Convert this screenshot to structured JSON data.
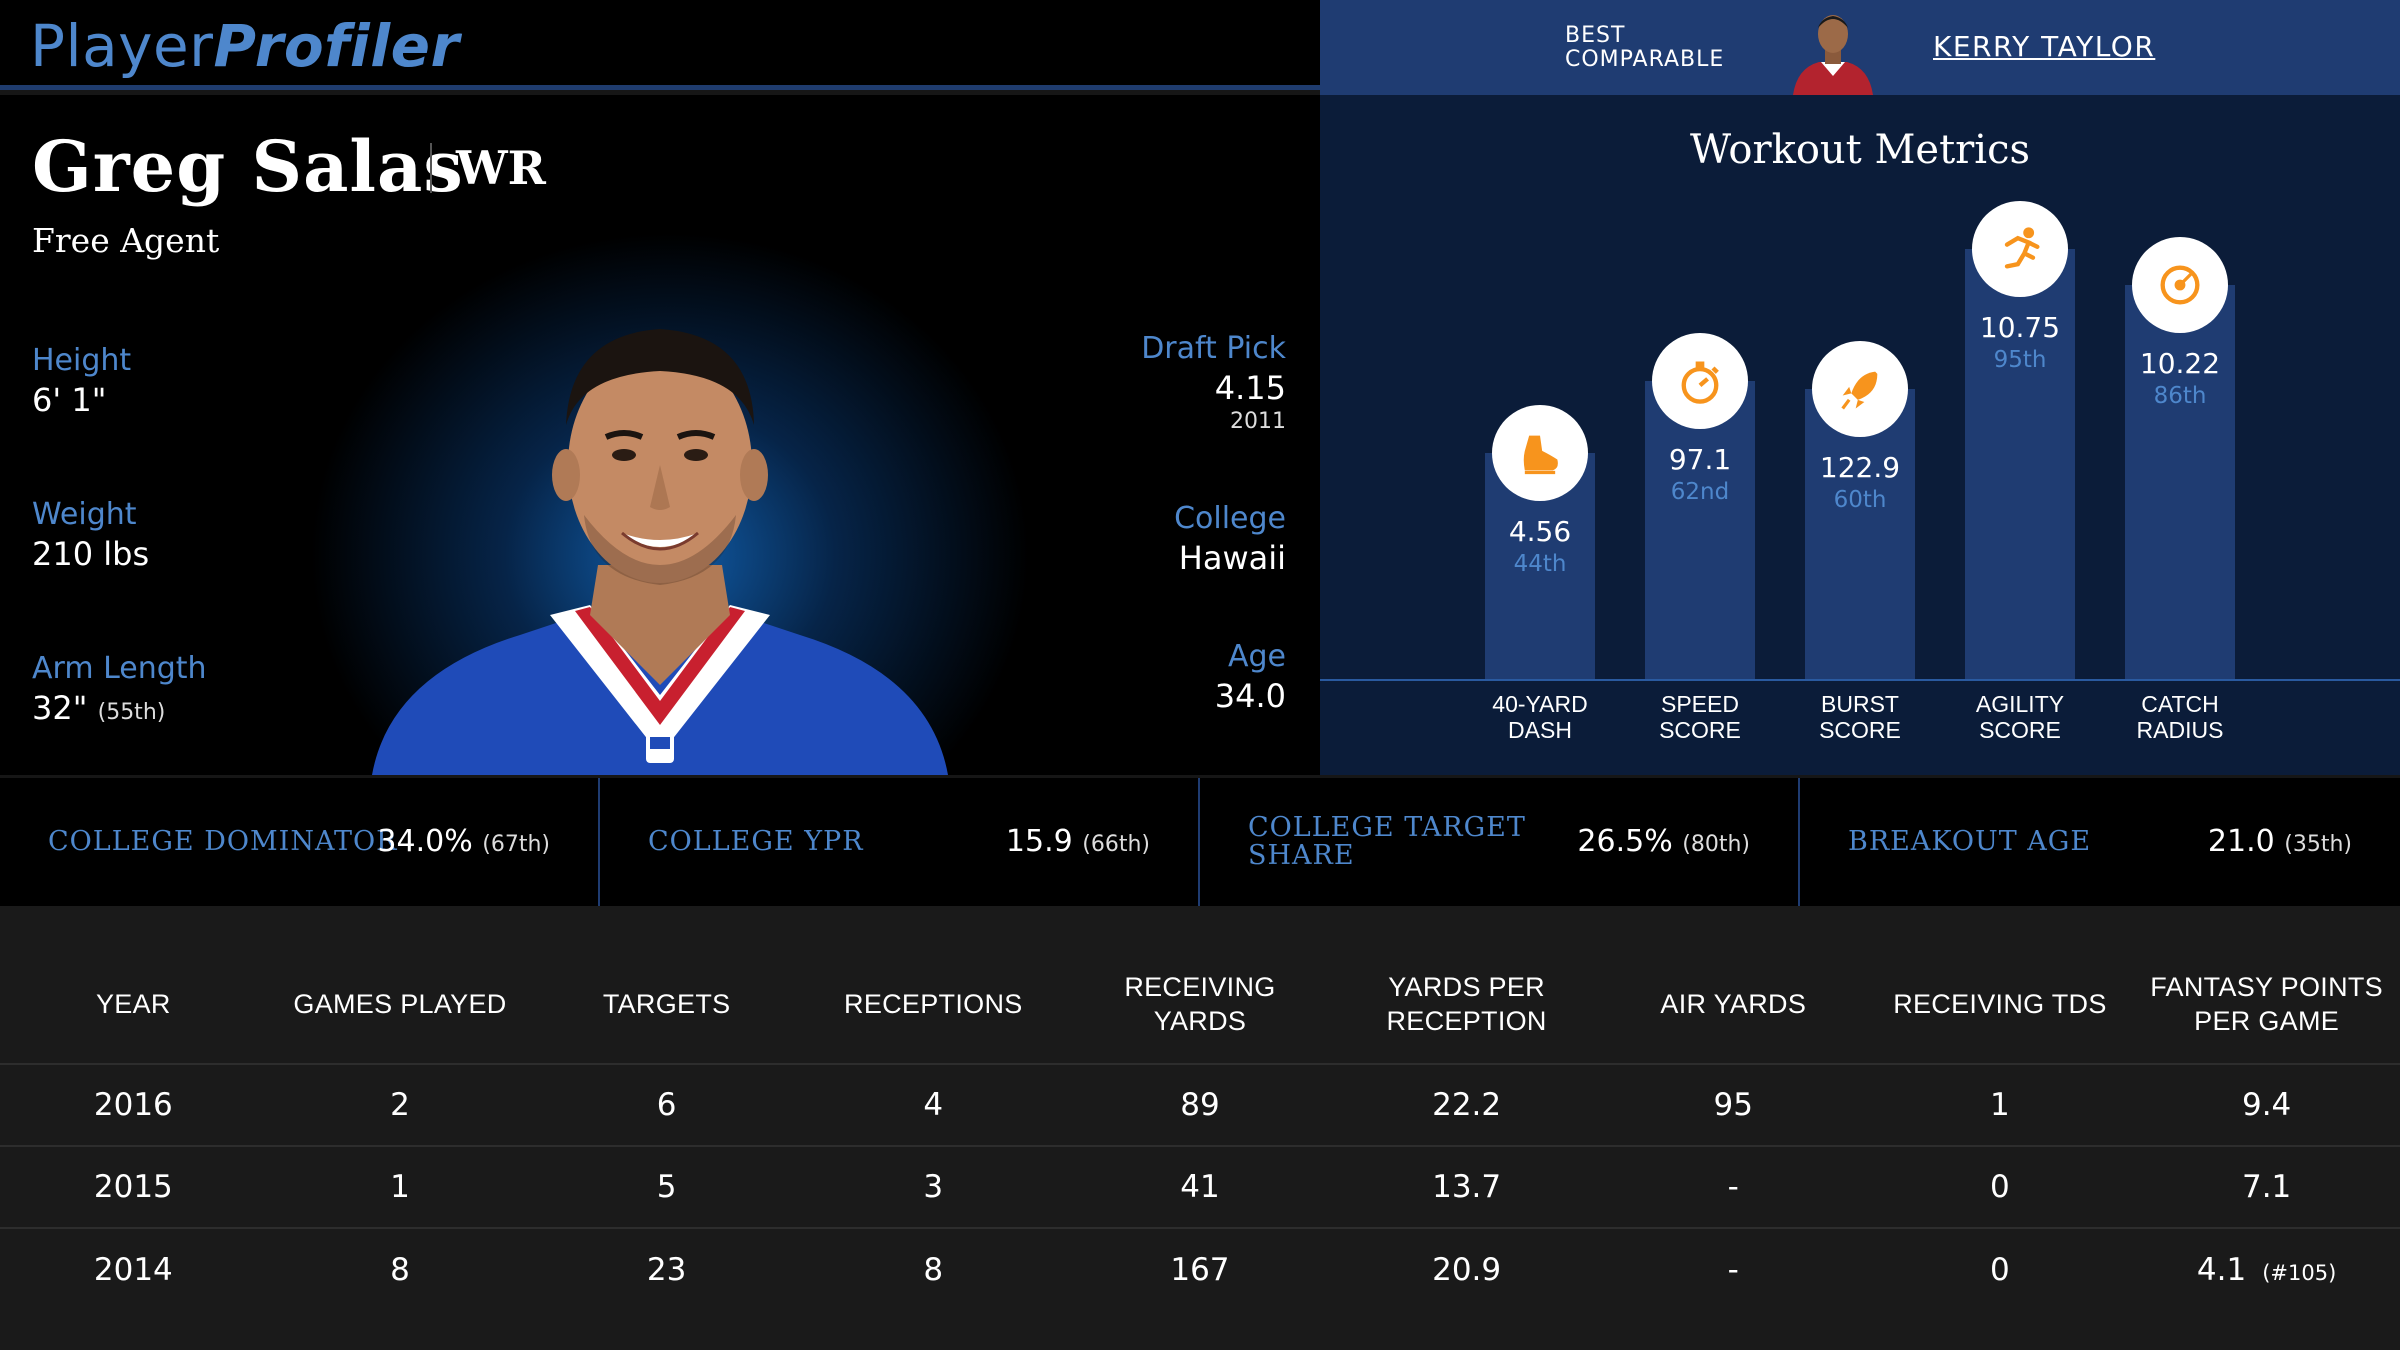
{
  "brand": {
    "part1": "Player",
    "part2": "Profiler"
  },
  "comparable": {
    "label_line1": "BEST",
    "label_line2": "COMPARABLE",
    "name": "KERRY TAYLOR"
  },
  "player": {
    "name": "Greg Salas",
    "position": "WR",
    "team": "Free Agent",
    "height_label": "Height",
    "height": "6' 1\"",
    "weight_label": "Weight",
    "weight": "210 lbs",
    "arm_label": "Arm Length",
    "arm": "32\"",
    "arm_rank": "(55th)",
    "draft_label": "Draft Pick",
    "draft": "4.15",
    "draft_year": "2011",
    "college_label": "College",
    "college": "Hawaii",
    "age_label": "Age",
    "age": "34.0"
  },
  "workout": {
    "title": "Workout Metrics",
    "metrics": [
      {
        "label1": "40-YARD",
        "label2": "DASH",
        "value": "4.56",
        "percentile": "44th",
        "percentile_value": 44,
        "icon": "shoe-icon"
      },
      {
        "label1": "SPEED",
        "label2": "SCORE",
        "value": "97.1",
        "percentile": "62nd",
        "percentile_value": 62,
        "icon": "stopwatch-icon"
      },
      {
        "label1": "BURST",
        "label2": "SCORE",
        "value": "122.9",
        "percentile": "60th",
        "percentile_value": 60,
        "icon": "rocket-icon"
      },
      {
        "label1": "AGILITY",
        "label2": "SCORE",
        "value": "10.75",
        "percentile": "95th",
        "percentile_value": 95,
        "icon": "runner-icon"
      },
      {
        "label1": "CATCH",
        "label2": "RADIUS",
        "value": "10.22",
        "percentile": "86th",
        "percentile_value": 86,
        "icon": "target-icon"
      }
    ],
    "accent_color": "#f7941d"
  },
  "college_metrics": [
    {
      "label": "COLLEGE DOMINATOR",
      "value": "34.0%",
      "rank": "(67th)"
    },
    {
      "label": "COLLEGE YPR",
      "value": "15.9",
      "rank": "(66th)"
    },
    {
      "label": "COLLEGE TARGET SHARE",
      "value": "26.5%",
      "rank": "(80th)"
    },
    {
      "label": "BREAKOUT AGE",
      "value": "21.0",
      "rank": "(35th)"
    }
  ],
  "season_table": {
    "headers": [
      "YEAR",
      "GAMES PLAYED",
      "TARGETS",
      "RECEPTIONS",
      "RECEIVING YARDS",
      "YARDS PER RECEPTION",
      "AIR YARDS",
      "RECEIVING TDS",
      "FANTASY POINTS PER GAME"
    ],
    "rows": [
      [
        "2016",
        "2",
        "6",
        "4",
        "89",
        "22.2",
        "95",
        "1",
        "9.4"
      ],
      [
        "2015",
        "1",
        "5",
        "3",
        "41",
        "13.7",
        "-",
        "0",
        "7.1"
      ],
      [
        "2014",
        "8",
        "23",
        "8",
        "167",
        "20.9",
        "-",
        "0",
        "4.1"
      ]
    ],
    "last_rank": "(#105)"
  }
}
